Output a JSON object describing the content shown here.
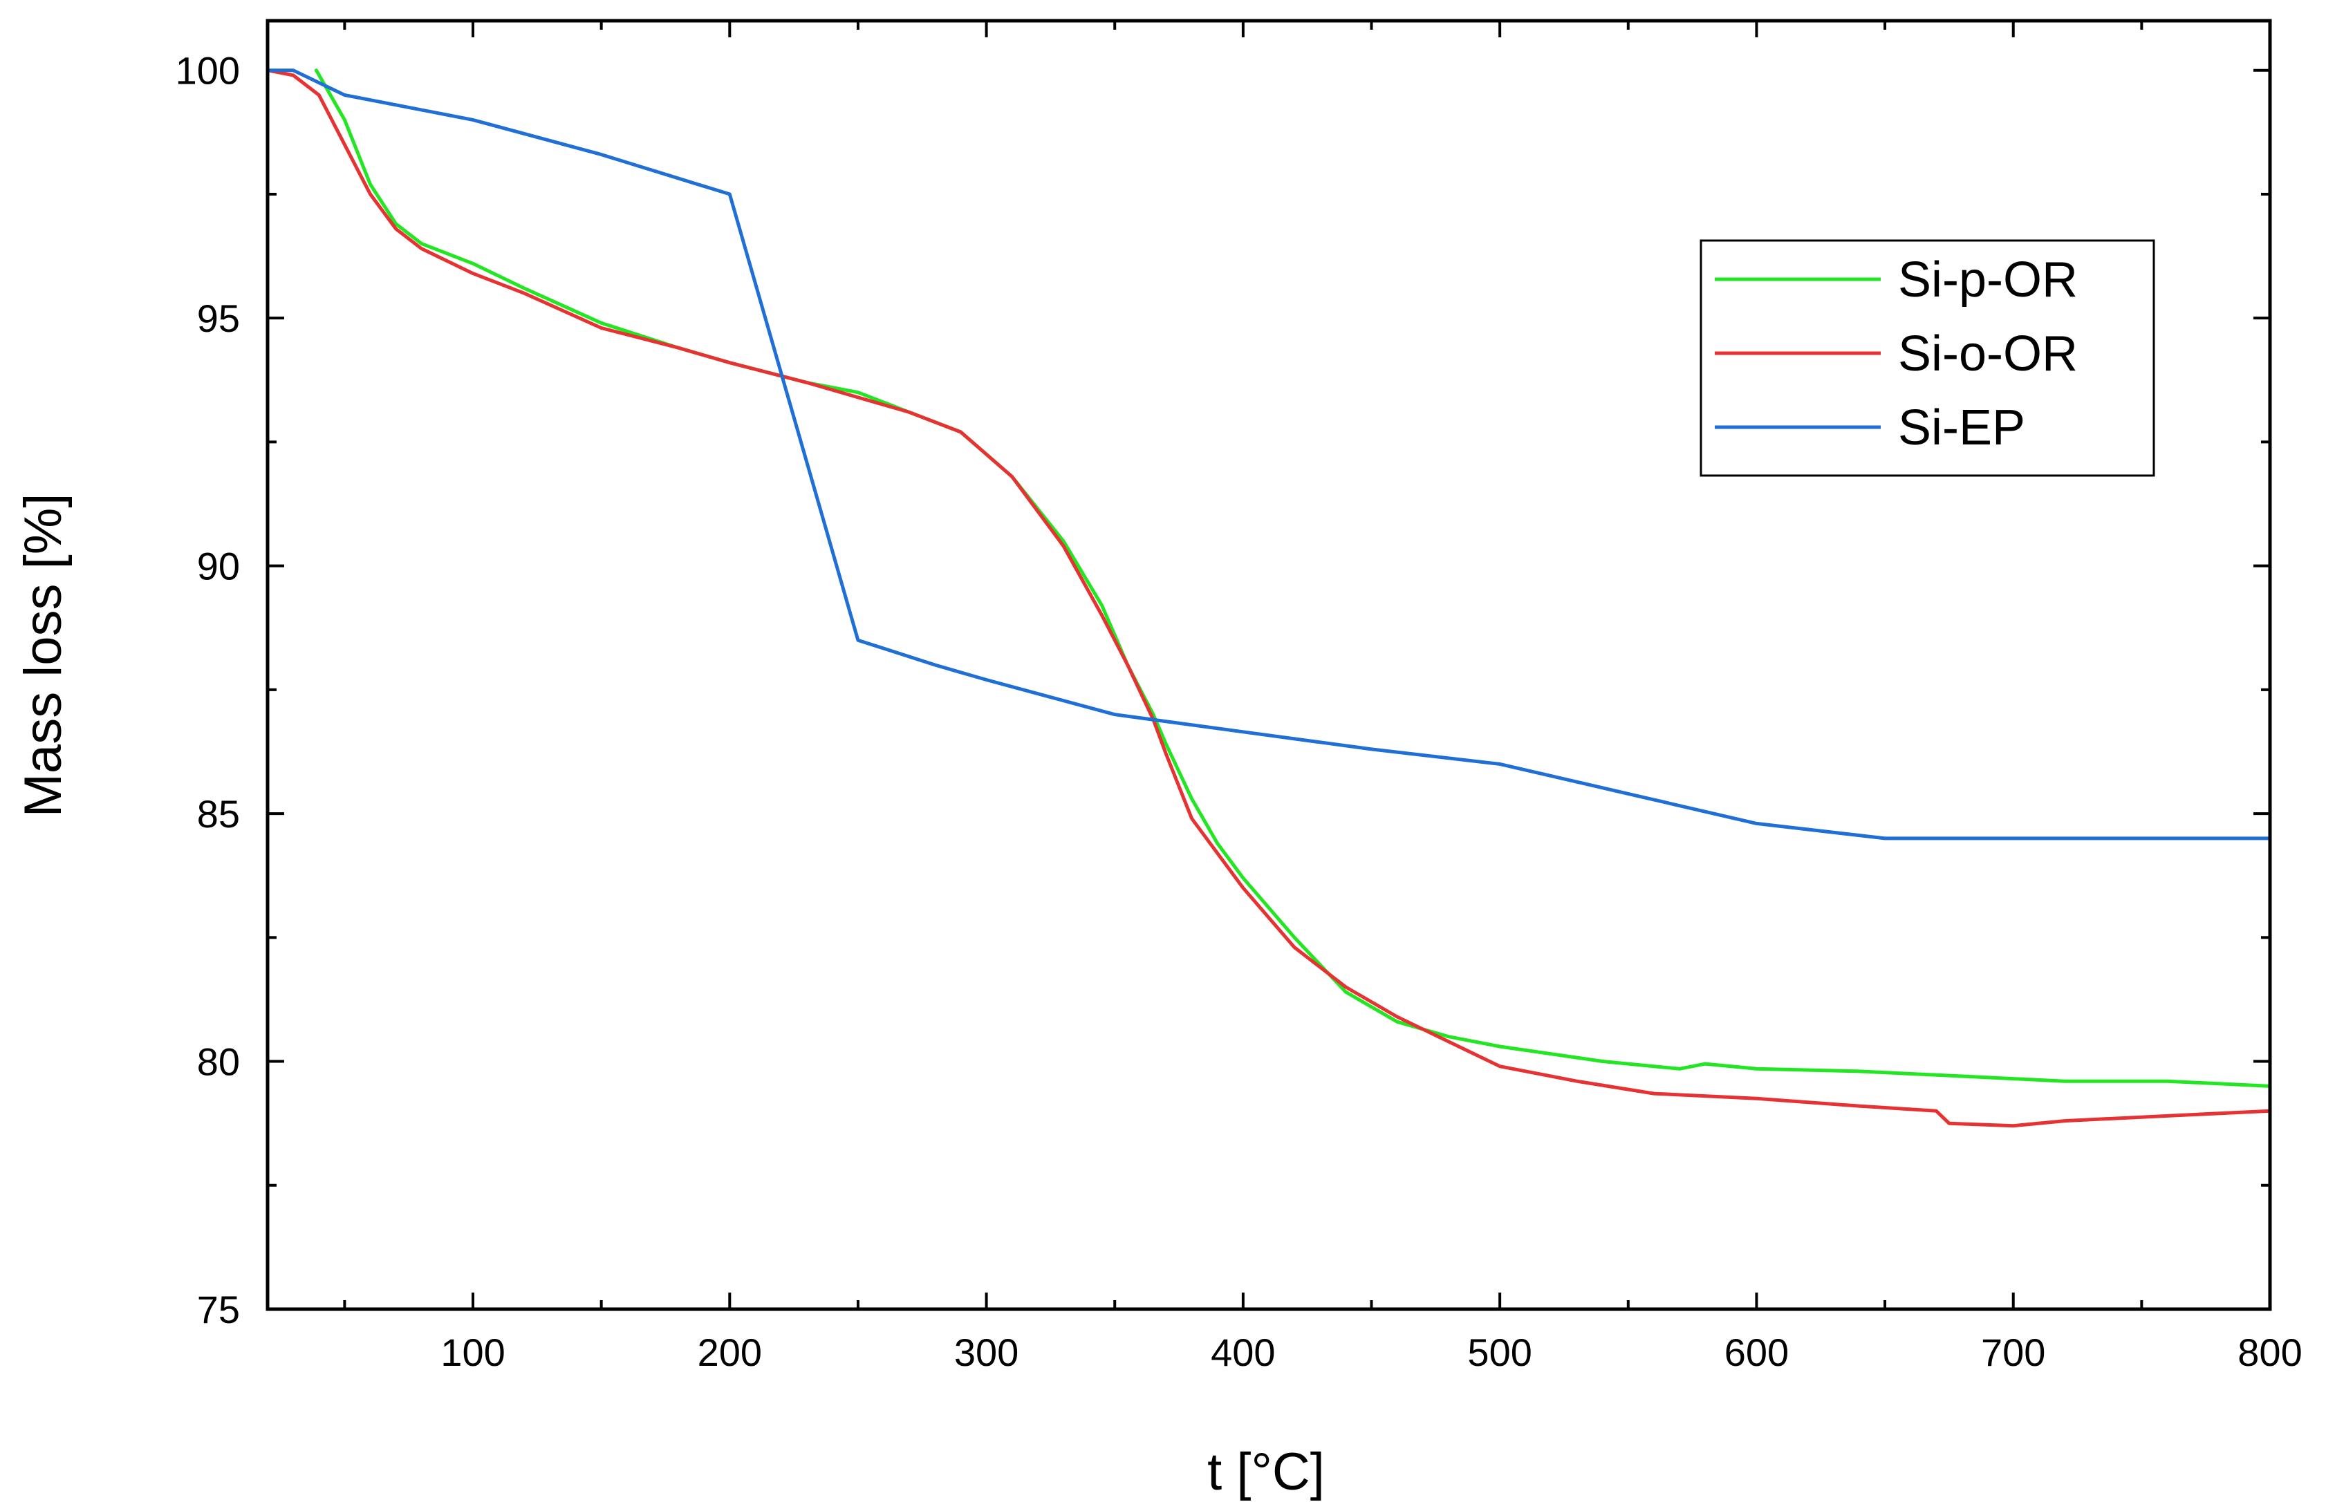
{
  "chart_data": {
    "type": "line",
    "xlabel": "t [°C]",
    "ylabel": "Mass loss [%]",
    "xlim": [
      20,
      800
    ],
    "ylim": [
      75,
      101
    ],
    "x_ticks": [
      100,
      200,
      300,
      400,
      500,
      600,
      700,
      800
    ],
    "x_tick_labels": [
      "100",
      "200",
      "300",
      "400",
      "500",
      "600",
      "700",
      "800"
    ],
    "y_ticks": [
      75,
      80,
      85,
      90,
      95,
      100
    ],
    "y_tick_labels": [
      "75",
      "80",
      "85",
      "90",
      "95",
      "100"
    ],
    "grid": false,
    "legend_position": "upper-right",
    "series": [
      {
        "name": "Si-p-OR",
        "color": "#22e622",
        "x": [
          39,
          50,
          60,
          70,
          80,
          100,
          120,
          150,
          180,
          200,
          230,
          250,
          270,
          290,
          310,
          330,
          345,
          355,
          365,
          370,
          380,
          390,
          400,
          420,
          440,
          460,
          480,
          500,
          540,
          570,
          580,
          600,
          640,
          680,
          720,
          760,
          800
        ],
        "y": [
          100.0,
          99.0,
          97.7,
          96.9,
          96.5,
          96.1,
          95.6,
          94.9,
          94.4,
          94.1,
          93.7,
          93.5,
          93.1,
          92.7,
          91.8,
          90.5,
          89.2,
          88.0,
          87.0,
          86.4,
          85.3,
          84.4,
          83.7,
          82.5,
          81.4,
          80.8,
          80.5,
          80.3,
          80.0,
          79.85,
          79.95,
          79.85,
          79.8,
          79.7,
          79.6,
          79.6,
          79.5
        ]
      },
      {
        "name": "Si-o-OR",
        "color": "#e63232",
        "x": [
          20,
          30,
          40,
          50,
          60,
          70,
          80,
          100,
          120,
          150,
          180,
          200,
          230,
          250,
          270,
          290,
          310,
          330,
          345,
          355,
          365,
          370,
          380,
          390,
          400,
          420,
          440,
          460,
          480,
          500,
          530,
          560,
          600,
          640,
          670,
          675,
          700,
          720,
          760,
          800
        ],
        "y": [
          100.0,
          99.9,
          99.5,
          98.5,
          97.5,
          96.8,
          96.4,
          95.9,
          95.5,
          94.8,
          94.4,
          94.1,
          93.7,
          93.4,
          93.1,
          92.7,
          91.8,
          90.4,
          89.0,
          88.0,
          86.9,
          86.2,
          84.9,
          84.2,
          83.5,
          82.3,
          81.5,
          80.9,
          80.4,
          79.9,
          79.6,
          79.35,
          79.25,
          79.1,
          79.0,
          78.75,
          78.7,
          78.8,
          78.9,
          79.0
        ]
      },
      {
        "name": "Si-EP",
        "color": "#1f6fd6",
        "x": [
          20,
          30,
          50,
          100,
          150,
          200,
          250,
          280,
          300,
          350,
          400,
          450,
          500,
          550,
          600,
          650,
          800
        ],
        "y": [
          100.0,
          100.0,
          99.5,
          99.0,
          98.3,
          97.5,
          88.5,
          88.0,
          87.7,
          87.0,
          86.65,
          86.3,
          86.0,
          85.4,
          84.8,
          84.5,
          84.5
        ]
      }
    ]
  }
}
